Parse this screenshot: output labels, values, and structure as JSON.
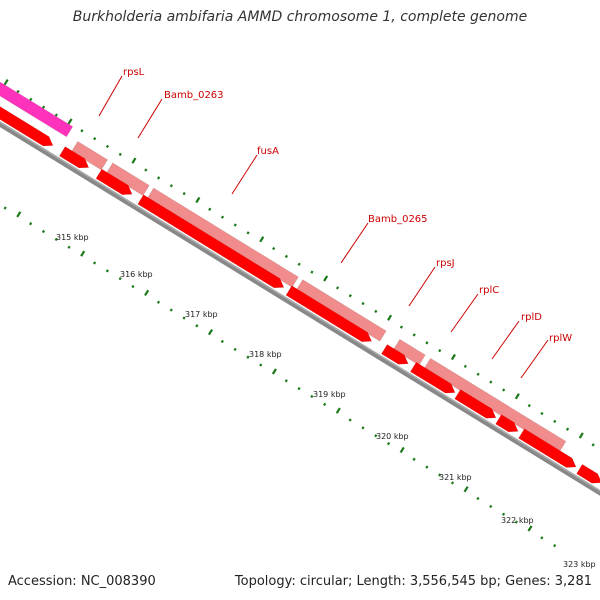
{
  "title": "Burkholderia ambifaria AMMD chromosome 1, complete genome",
  "footer": {
    "accession": "Accession: NC_008390",
    "summary": "Topology: circular; Length: 3,556,545 bp; Genes: 3,281"
  },
  "colors": {
    "backbone": "#888888",
    "outer_feature": "#f08c8c",
    "inner_feature": "#ff0000",
    "highlight_feature": "#ff33bb",
    "tick": "#1a7a1a",
    "label": "#cc0000"
  },
  "gene_labels": [
    "rpsL",
    "Bamb_0263",
    "fusA",
    "Bamb_0265",
    "rpsJ",
    "rplC",
    "rplD",
    "rplW"
  ],
  "tick_labels": [
    "315 kbp",
    "316 kbp",
    "317 kbp",
    "318 kbp",
    "319 kbp",
    "320 kbp",
    "321 kbp",
    "322 kbp",
    "323 kbp"
  ]
}
